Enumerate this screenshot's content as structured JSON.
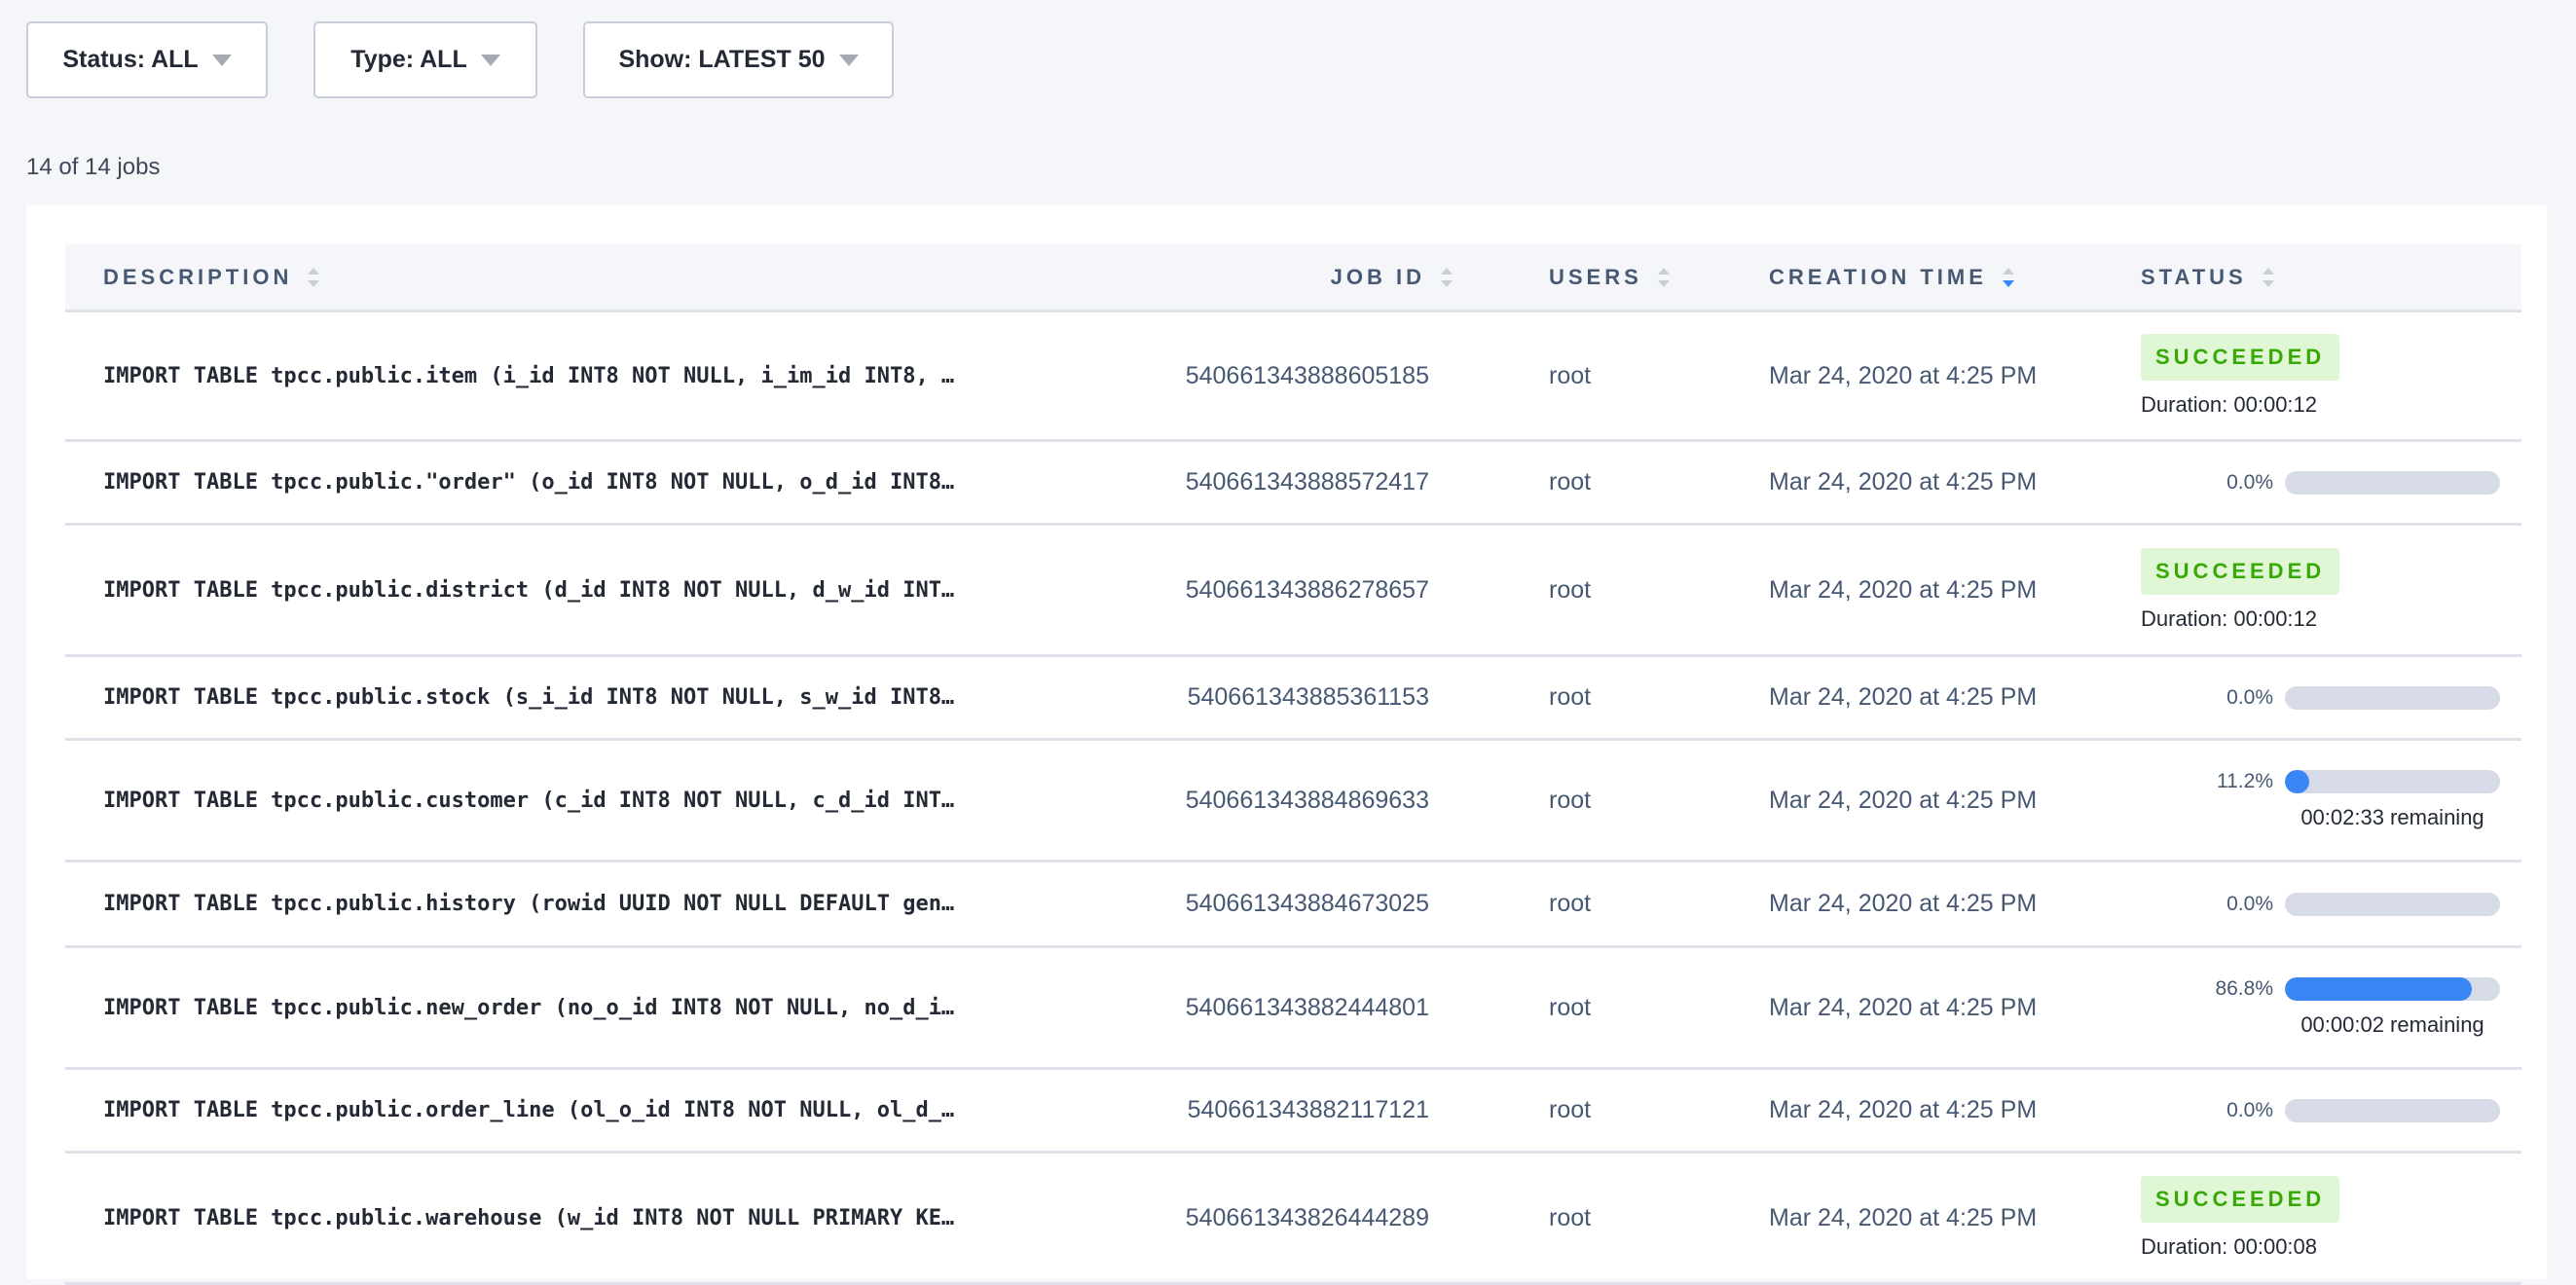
{
  "filters": [
    {
      "label": "Status: ALL"
    },
    {
      "label": "Type: ALL"
    },
    {
      "label": "Show: LATEST 50"
    }
  ],
  "count_text": "14 of 14 jobs",
  "columns": {
    "description": "DESCRIPTION",
    "job_id": "JOB ID",
    "users": "USERS",
    "creation_time": "CREATION TIME",
    "status": "STATUS"
  },
  "sorted_by": "creation_time",
  "sort_direction": "descending",
  "colors": {
    "accent": "#3a86f5",
    "success_bg": "#e0f7d6",
    "success_text": "#37a806",
    "bar_track": "#d6dbe7"
  },
  "jobs": [
    {
      "description": "IMPORT TABLE tpcc.public.item (i_id INT8 NOT NULL, i_im_id INT8, …",
      "job_id": "540661343888605185",
      "user": "root",
      "created": "Mar 24, 2020 at 4:25 PM",
      "status": "SUCCEEDED",
      "duration": "Duration: 00:00:12"
    },
    {
      "description": "IMPORT TABLE tpcc.public.\"order\" (o_id INT8 NOT NULL, o_d_id INT8…",
      "job_id": "540661343888572417",
      "user": "root",
      "created": "Mar 24, 2020 at 4:25 PM",
      "progress": 0.0,
      "progress_label": "0.0%"
    },
    {
      "description": "IMPORT TABLE tpcc.public.district (d_id INT8 NOT NULL, d_w_id INT…",
      "job_id": "540661343886278657",
      "user": "root",
      "created": "Mar 24, 2020 at 4:25 PM",
      "status": "SUCCEEDED",
      "duration": "Duration: 00:00:12"
    },
    {
      "description": "IMPORT TABLE tpcc.public.stock (s_i_id INT8 NOT NULL, s_w_id INT8…",
      "job_id": "540661343885361153",
      "user": "root",
      "created": "Mar 24, 2020 at 4:25 PM",
      "progress": 0.0,
      "progress_label": "0.0%"
    },
    {
      "description": "IMPORT TABLE tpcc.public.customer (c_id INT8 NOT NULL, c_d_id INT…",
      "job_id": "540661343884869633",
      "user": "root",
      "created": "Mar 24, 2020 at 4:25 PM",
      "progress": 11.2,
      "progress_label": "11.2%",
      "remaining": "00:02:33 remaining"
    },
    {
      "description": "IMPORT TABLE tpcc.public.history (rowid UUID NOT NULL DEFAULT gen…",
      "job_id": "540661343884673025",
      "user": "root",
      "created": "Mar 24, 2020 at 4:25 PM",
      "progress": 0.0,
      "progress_label": "0.0%"
    },
    {
      "description": "IMPORT TABLE tpcc.public.new_order (no_o_id INT8 NOT NULL, no_d_i…",
      "job_id": "540661343882444801",
      "user": "root",
      "created": "Mar 24, 2020 at 4:25 PM",
      "progress": 86.8,
      "progress_label": "86.8%",
      "remaining": "00:00:02 remaining"
    },
    {
      "description": "IMPORT TABLE tpcc.public.order_line (ol_o_id INT8 NOT NULL, ol_d_…",
      "job_id": "540661343882117121",
      "user": "root",
      "created": "Mar 24, 2020 at 4:25 PM",
      "progress": 0.0,
      "progress_label": "0.0%"
    },
    {
      "description": "IMPORT TABLE tpcc.public.warehouse (w_id INT8 NOT NULL PRIMARY KE…",
      "job_id": "540661343826444289",
      "user": "root",
      "created": "Mar 24, 2020 at 4:25 PM",
      "status": "SUCCEEDED",
      "duration": "Duration: 00:00:08"
    }
  ]
}
